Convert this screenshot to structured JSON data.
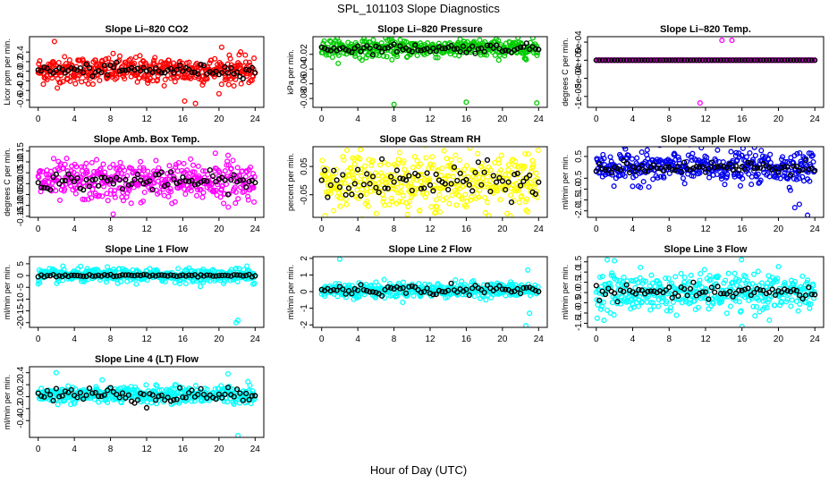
{
  "figure": {
    "title": "SPL_101103  Slope Diagnostics",
    "xlabel": "Hour of Day (UTC)",
    "x_ticks": [
      0,
      4,
      8,
      12,
      16,
      20,
      24
    ],
    "xlim": [
      -0.96,
      24.96
    ]
  },
  "chart_data": [
    {
      "type": "scatter",
      "id": "co2",
      "title": "Slope Li–820 CO2",
      "ylabel": "Licor ppm per min.",
      "ylim": [
        -0.75,
        0.72
      ],
      "yticks": [
        0.4,
        0.2,
        0.0,
        -0.2,
        -0.4,
        -0.6
      ],
      "ytick_labels": [
        "0.4",
        "0.2",
        "0.0",
        "-0.2",
        "-0.4",
        "-0.6"
      ],
      "color": "#ff0000",
      "mean_color": "#000000",
      "center": 0.02,
      "spread": 0.14,
      "outliers": [
        [
          16.2,
          -0.62
        ],
        [
          17.4,
          -0.67
        ],
        [
          20.3,
          0.5
        ],
        [
          1.8,
          0.62
        ]
      ],
      "mean_spread": 0.06
    },
    {
      "type": "scatter",
      "id": "pressure",
      "title": "Slope Li–820 Pressure",
      "ylabel": "kPa per min.",
      "ylim": [
        -0.092,
        0.004
      ],
      "yticks": [
        -0.02,
        -0.04,
        -0.06,
        -0.08
      ],
      "ytick_labels": [
        "-0.02",
        "-0.04",
        "-0.06",
        "-0.08"
      ],
      "color": "#00cc00",
      "mean_color": "#000000",
      "center": -0.012,
      "spread": 0.006,
      "outliers": [
        [
          8.0,
          -0.088
        ],
        [
          16.0,
          -0.085
        ],
        [
          23.8,
          -0.086
        ]
      ],
      "mean_spread": 0.003
    },
    {
      "type": "scatter",
      "id": "temp",
      "title": "Slope Li–820 Temp.",
      "ylabel": "degrees C per min.",
      "ylim": [
        -0.0013,
        0.00065
      ],
      "yticks": [
        0.0005,
        0.0,
        -0.0005,
        -0.001
      ],
      "ytick_labels": [
        "5e-04",
        "0e+00",
        "-5e-04",
        "-1e-03"
      ],
      "color": "#ff00ff",
      "mean_color": "#000000",
      "center": 0.0,
      "spread": 0.0,
      "outliers": [
        [
          13.8,
          0.00055
        ],
        [
          14.9,
          0.00055
        ],
        [
          11.4,
          -0.00118
        ]
      ],
      "mean_spread": 0.0
    },
    {
      "type": "scatter",
      "id": "boxtemp",
      "title": "Slope Amb. Box Temp.",
      "ylabel": "degrees C per min.",
      "ylim": [
        -0.155,
        0.17
      ],
      "yticks": [
        0.15,
        0.1,
        0.05,
        0.0,
        -0.05,
        -0.1,
        -0.15
      ],
      "ytick_labels": [
        "0.15",
        "0.10",
        "0.05",
        "0.00",
        "-0.05",
        "-0.10",
        "-0.15"
      ],
      "color": "#ff00ff",
      "mean_color": "#000000",
      "center": 0.01,
      "spread": 0.045,
      "outliers": [
        [
          8.3,
          -0.14
        ],
        [
          19.6,
          0.14
        ],
        [
          21.0,
          0.13
        ]
      ],
      "mean_spread": 0.02
    },
    {
      "type": "scatter",
      "id": "rh",
      "title": "Slope Gas Stream RH",
      "ylabel": "percent per min.",
      "ylim": [
        -0.13,
        0.12
      ],
      "yticks": [
        0.05,
        -0.05
      ],
      "ytick_labels": [
        "0.05",
        "-0.05"
      ],
      "color": "#ffff00",
      "mean_color": "#000000",
      "center": -0.005,
      "spread": 0.05,
      "outliers": [
        [
          4.3,
          0.11
        ],
        [
          9.5,
          -0.12
        ],
        [
          22.8,
          -0.11
        ]
      ],
      "mean_spread": 0.03
    },
    {
      "type": "scatter",
      "id": "sampleflow",
      "title": "Slope Sample Flow",
      "ylabel": "ml/min per min.",
      "ylim": [
        -2.3,
        0.95
      ],
      "yticks": [
        0.5,
        -0.5,
        -1.0,
        -1.5,
        -2.0
      ],
      "ytick_labels": [
        "0.5",
        "-0.5",
        "-1.0",
        "-1.5",
        "-2.0"
      ],
      "color": "#0000ee",
      "mean_color": "#000000",
      "center": 0.0,
      "spread": 0.35,
      "outliers": [
        [
          21.8,
          -1.85
        ],
        [
          22.3,
          -1.7
        ],
        [
          23.2,
          -2.2
        ],
        [
          5.0,
          0.7
        ]
      ],
      "mean_spread": 0.15
    },
    {
      "type": "scatter",
      "id": "line1",
      "title": "Slope Line 1 Flow",
      "ylabel": "ml/min per min.",
      "ylim": [
        -22,
        8
      ],
      "yticks": [
        5,
        0,
        -5,
        -10,
        -15,
        -20
      ],
      "ytick_labels": [
        "5",
        "0",
        "-5",
        "-10",
        "-15",
        "-20"
      ],
      "color": "#00ffff",
      "mean_color": "#000000",
      "center": 0.0,
      "spread": 1.4,
      "outliers": [
        [
          21.9,
          -20
        ],
        [
          22.1,
          -19
        ],
        [
          23.1,
          4
        ],
        [
          21.9,
          3
        ]
      ],
      "mean_spread": 0.3
    },
    {
      "type": "scatter",
      "id": "line2",
      "title": "Slope Line 2 Flow",
      "ylabel": "ml/min per min.",
      "ylim": [
        -2.15,
        2.1
      ],
      "yticks": [
        2,
        1,
        0,
        -1,
        -2
      ],
      "ytick_labels": [
        "2",
        "1",
        "0",
        "-1",
        "-2"
      ],
      "color": "#00ffff",
      "mean_color": "#000000",
      "center": 0.1,
      "spread": 0.22,
      "outliers": [
        [
          2.0,
          1.95
        ],
        [
          23.0,
          -1.3
        ],
        [
          22.8,
          1.3
        ],
        [
          22.6,
          -2.05
        ]
      ],
      "mean_spread": 0.15
    },
    {
      "type": "scatter",
      "id": "line3",
      "title": "Slope Line 3 Flow",
      "ylabel": "ml/min per min.",
      "ylim": [
        -1.7,
        1.75
      ],
      "yticks": [
        1.5,
        1.0,
        0.5,
        0.0,
        -0.5,
        -1.0,
        -1.5
      ],
      "ytick_labels": [
        "1.5",
        "1.0",
        "0.5",
        "0.0",
        "-0.5",
        "-1.0",
        "-1.5"
      ],
      "color": "#00ffff",
      "mean_color": "#000000",
      "center": 0.0,
      "spread": 0.45,
      "outliers": [
        [
          16.0,
          -1.65
        ],
        [
          19.0,
          -1.35
        ],
        [
          1.2,
          1.6
        ],
        [
          2.0,
          1.55
        ]
      ],
      "mean_spread": 0.15
    },
    {
      "type": "scatter",
      "id": "line4",
      "title": "Slope Line 4 (LT) Flow",
      "ylabel": "ml/min per min.",
      "ylim": [
        -0.68,
        0.5
      ],
      "yticks": [
        0.4,
        0.2,
        0.0,
        -0.2,
        -0.4
      ],
      "ytick_labels": [
        "0.4",
        "0.2",
        "0.0",
        "-0.2",
        "-0.4"
      ],
      "color": "#00ffff",
      "mean_color": "#000000",
      "center": 0.03,
      "spread": 0.07,
      "outliers": [
        [
          2.0,
          0.4
        ],
        [
          21.0,
          0.38
        ],
        [
          22.1,
          -0.65
        ],
        [
          23.2,
          0.25
        ]
      ],
      "mean_spread": 0.07
    }
  ]
}
